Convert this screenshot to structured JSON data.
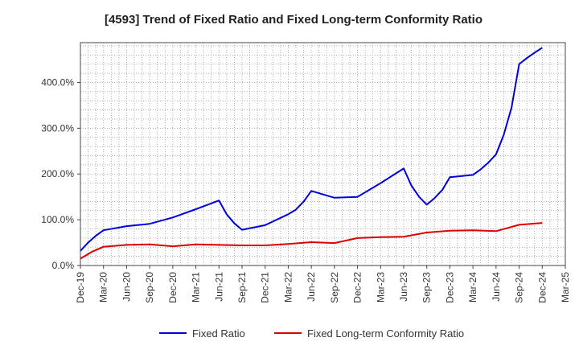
{
  "chart_data": {
    "type": "line",
    "title": "[4593]  Trend of Fixed Ratio and Fixed Long-term Conformity Ratio",
    "x_tick_labels": [
      "Dec-19",
      "Mar-20",
      "Jun-20",
      "Sep-20",
      "Dec-20",
      "Mar-21",
      "Jun-21",
      "Sep-21",
      "Dec-21",
      "Mar-22",
      "Jun-22",
      "Sep-22",
      "Dec-22",
      "Mar-23",
      "Jun-23",
      "Sep-23",
      "Dec-23",
      "Mar-24",
      "Jun-24",
      "Sep-24",
      "Dec-24",
      "Mar-25"
    ],
    "y_tick_labels": [
      "0.0%",
      "100.0%",
      "200.0%",
      "300.0%",
      "400.0%"
    ],
    "y_ticks": [
      0,
      100,
      200,
      300,
      400
    ],
    "ylim": [
      0,
      487
    ],
    "grid": true,
    "legend_position": "bottom",
    "series": [
      {
        "name": "Fixed Ratio",
        "color": "#0000dd",
        "x": [
          0,
          0.33,
          0.67,
          1,
          2,
          3,
          4,
          5,
          6,
          6.33,
          6.67,
          7,
          8,
          9,
          9.33,
          9.67,
          10,
          11,
          12,
          13,
          14,
          14.33,
          14.67,
          15,
          15.33,
          15.67,
          16,
          17,
          17.33,
          17.67,
          18,
          18.33,
          18.67,
          19,
          19.33,
          19.67,
          20
        ],
        "values": [
          32,
          50,
          65,
          77,
          86,
          91,
          105,
          123,
          142,
          112,
          92,
          78,
          88,
          112,
          122,
          140,
          163,
          148,
          150,
          180,
          212,
          175,
          150,
          133,
          147,
          165,
          193,
          198,
          210,
          225,
          243,
          285,
          345,
          440,
          453,
          465,
          476
        ]
      },
      {
        "name": "Fixed Long-term Conformity Ratio",
        "color": "#dd0000",
        "x": [
          0,
          0.5,
          1,
          2,
          3,
          4,
          5,
          6,
          7,
          8,
          9,
          10,
          11,
          12,
          13,
          14,
          15,
          16,
          17,
          18,
          19,
          20
        ],
        "values": [
          15,
          30,
          41,
          45,
          46,
          42,
          46,
          45,
          44,
          44,
          47,
          51,
          49,
          60,
          62,
          63,
          72,
          76,
          77,
          75,
          89,
          93
        ]
      }
    ]
  }
}
